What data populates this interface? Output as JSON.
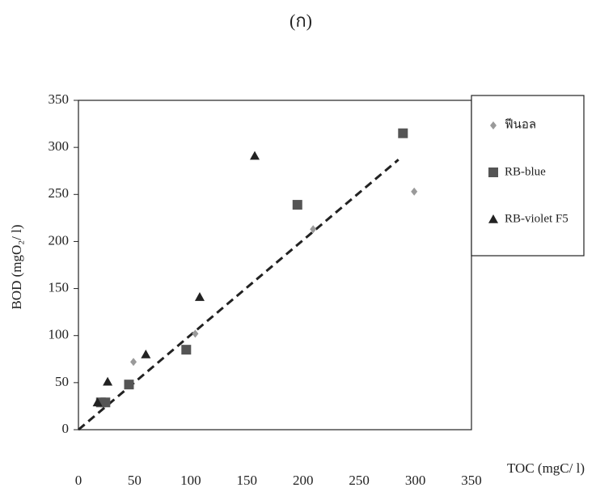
{
  "chart_data": {
    "type": "scatter",
    "title": "(ก)",
    "x_label": "TOC (mgC/ l)",
    "y_label": "BOD (mgO₂/ l)",
    "xlim": [
      0,
      350
    ],
    "ylim": [
      0,
      350
    ],
    "xticks": [
      0,
      50,
      100,
      150,
      200,
      250,
      300,
      350
    ],
    "yticks": [
      0,
      50,
      100,
      150,
      200,
      250,
      300,
      350
    ],
    "legend": "right",
    "series": [
      {
        "name": "ฟีนอล",
        "marker": "diamond",
        "color": "#9a9a9a",
        "x": [
          20,
          49,
          104,
          209,
          299
        ],
        "values": [
          28,
          72,
          102,
          213,
          253
        ]
      },
      {
        "name": "RB-blue",
        "marker": "square",
        "color": "#555555",
        "x": [
          20,
          24,
          45,
          96,
          195,
          289
        ],
        "values": [
          29,
          29,
          48,
          85,
          239,
          315
        ]
      },
      {
        "name": "RB-violet F5",
        "marker": "triangle",
        "color": "#222222",
        "x": [
          17,
          26,
          60,
          108,
          157
        ],
        "values": [
          29,
          51,
          80,
          141,
          291
        ]
      }
    ],
    "trendline": {
      "x": [
        0,
        285
      ],
      "values": [
        0,
        287
      ]
    }
  }
}
